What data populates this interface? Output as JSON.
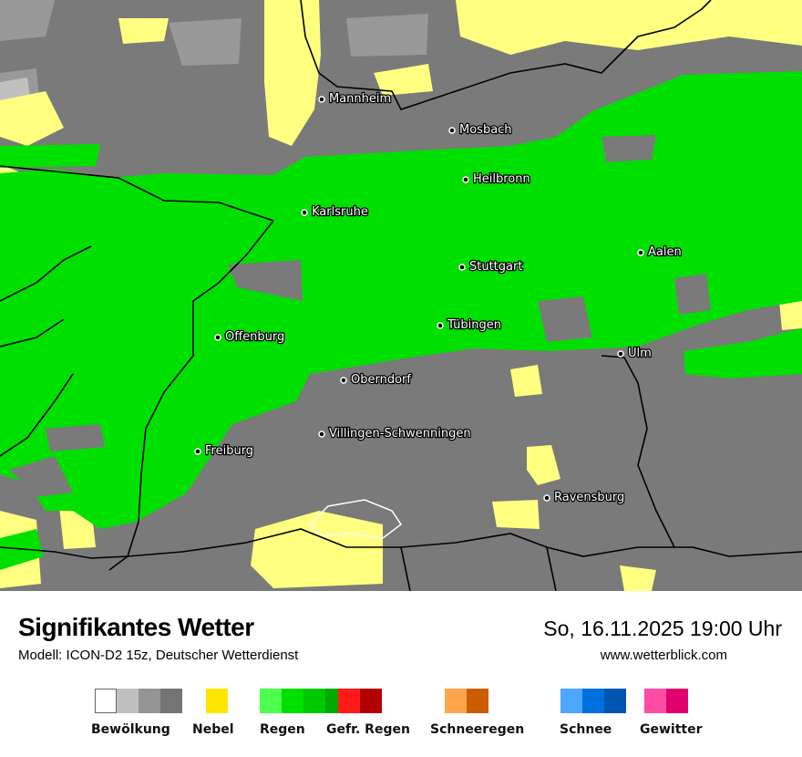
{
  "header": {
    "title": "Signifikantes Wetter",
    "subtitle": "Modell: ICON-D2 15z, Deutscher Wetterdienst",
    "datetime": "So, 16.11.2025 19:00 Uhr",
    "website": "www.wetterblick.com"
  },
  "map": {
    "colors": {
      "cloud": "#7a7a7a",
      "cloud_light": "#999999",
      "cloud_lighter": "#c0c0c0",
      "fog": "#ffff80",
      "rain": "#00e000"
    },
    "cities": [
      {
        "name": "Mannheim"
      },
      {
        "name": "Mosbach"
      },
      {
        "name": "Heilbronn"
      },
      {
        "name": "Karlsruhe"
      },
      {
        "name": "Aalen"
      },
      {
        "name": "Stuttgart"
      },
      {
        "name": "Tübingen"
      },
      {
        "name": "Offenburg"
      },
      {
        "name": "Ulm"
      },
      {
        "name": "Oberndorf"
      },
      {
        "name": "Villingen-Schwenningen"
      },
      {
        "name": "Freiburg"
      },
      {
        "name": "Ravensburg"
      }
    ]
  },
  "legend": [
    {
      "label": "Bewölkung",
      "colors": [
        "#ffffff",
        "#c0c0c0",
        "#959595",
        "#747474"
      ]
    },
    {
      "label": "Nebel",
      "colors": [
        "#ffe600"
      ]
    },
    {
      "label": "Regen",
      "colors": [
        "#4dff4d",
        "#00e000",
        "#00c800",
        "#00aa00"
      ]
    },
    {
      "label": "Gefr. Regen",
      "colors": [
        "#ff1a1a",
        "#b00000"
      ]
    },
    {
      "label": "Schneeregen",
      "colors": [
        "#ffa64d",
        "#cc5c00"
      ]
    },
    {
      "label": "Schnee",
      "colors": [
        "#4da6ff",
        "#0070e0",
        "#0055b0"
      ]
    },
    {
      "label": "Gewitter",
      "colors": [
        "#ff4da6",
        "#e0006e"
      ]
    }
  ]
}
